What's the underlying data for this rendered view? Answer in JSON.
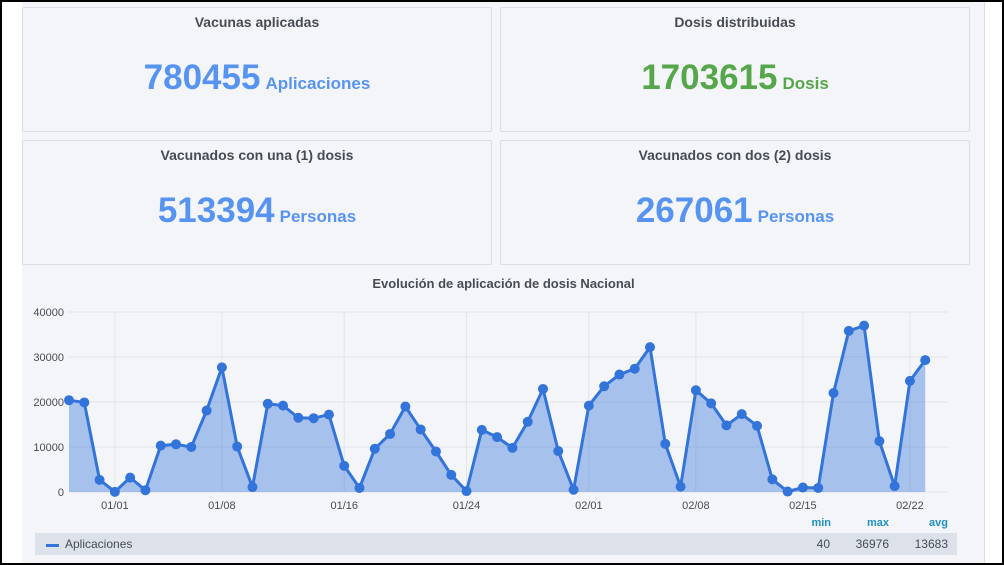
{
  "cards": [
    {
      "title": "Vacunas aplicadas",
      "value": "780455",
      "unit": "Aplicaciones",
      "color": "#5794f2"
    },
    {
      "title": "Dosis distribuidas",
      "value": "1703615",
      "unit": "Dosis",
      "color": "#56a64b"
    },
    {
      "title": "Vacunados con una (1) dosis",
      "value": "513394",
      "unit": "Personas",
      "color": "#5794f2"
    },
    {
      "title": "Vacunados con dos (2) dosis",
      "value": "267061",
      "unit": "Personas",
      "color": "#5794f2"
    }
  ],
  "chart_data": {
    "type": "area",
    "title": "Evolución de aplicación de dosis Nacional",
    "ylim": [
      0,
      40000
    ],
    "yticks": [
      "0",
      "10000",
      "20000",
      "30000",
      "40000"
    ],
    "xticks": [
      "01/01",
      "01/08",
      "01/16",
      "01/24",
      "02/01",
      "02/08",
      "02/15",
      "02/22"
    ],
    "grid": true,
    "x": [
      "12/29",
      "12/30",
      "12/31",
      "01/01",
      "01/02",
      "01/03",
      "01/04",
      "01/05",
      "01/06",
      "01/07",
      "01/08",
      "01/09",
      "01/10",
      "01/11",
      "01/12",
      "01/13",
      "01/14",
      "01/15",
      "01/16",
      "01/17",
      "01/18",
      "01/19",
      "01/20",
      "01/21",
      "01/22",
      "01/23",
      "01/24",
      "01/25",
      "01/26",
      "01/27",
      "01/28",
      "01/29",
      "01/30",
      "01/31",
      "02/01",
      "02/02",
      "02/03",
      "02/04",
      "02/05",
      "02/06",
      "02/07",
      "02/08",
      "02/09",
      "02/10",
      "02/11",
      "02/12",
      "02/13",
      "02/14",
      "02/15",
      "02/16",
      "02/17",
      "02/18",
      "02/19",
      "02/20",
      "02/21",
      "02/22",
      "02/23"
    ],
    "series": [
      {
        "name": "Aplicaciones",
        "color": "#3274d9",
        "values": [
          20400,
          19900,
          2700,
          40,
          3200,
          400,
          10300,
          10600,
          10000,
          18100,
          27700,
          10100,
          1100,
          19600,
          19200,
          16500,
          16400,
          17200,
          5800,
          900,
          9600,
          12900,
          19000,
          13900,
          9000,
          3800,
          200,
          13800,
          12200,
          9800,
          15600,
          22900,
          9100,
          500,
          19200,
          23500,
          26100,
          27400,
          32200,
          10700,
          1200,
          22600,
          19700,
          14800,
          17300,
          14700,
          2800,
          100,
          1000,
          900,
          22000,
          35800,
          36976,
          11300,
          1300,
          24700,
          29300
        ]
      }
    ],
    "legend": {
      "placement": "bottom",
      "headers": [
        "min",
        "max",
        "avg"
      ],
      "rows": [
        {
          "name": "Aplicaciones",
          "min": "40",
          "max": "36976",
          "avg": "13683"
        }
      ]
    }
  }
}
